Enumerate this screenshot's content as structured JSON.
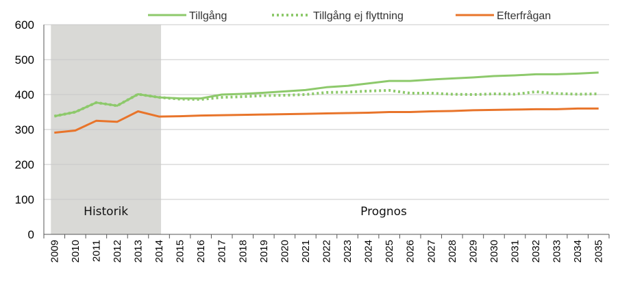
{
  "chart_data": {
    "type": "line",
    "title": "",
    "xlabel": "",
    "ylabel": "",
    "ylim": [
      0,
      600
    ],
    "yticks": [
      0,
      100,
      200,
      300,
      400,
      500,
      600
    ],
    "grid": "horizontal",
    "legend_position": "top",
    "x": [
      "2009",
      "2010",
      "2011",
      "2012",
      "2013",
      "2014",
      "2015",
      "2016",
      "2017",
      "2018",
      "2019",
      "2020",
      "2021",
      "2022",
      "2023",
      "2024",
      "2025",
      "2026",
      "2027",
      "2028",
      "2029",
      "2030",
      "2031",
      "2032",
      "2033",
      "2034",
      "2035"
    ],
    "series": [
      {
        "name": "Tillgång",
        "color": "#8dc96b",
        "style": "solid",
        "values": [
          338,
          350,
          377,
          368,
          401,
          392,
          389,
          389,
          400,
          402,
          405,
          409,
          413,
          421,
          425,
          432,
          439,
          439,
          443,
          446,
          449,
          453,
          455,
          458,
          458,
          460,
          463
        ]
      },
      {
        "name": "Tillgång ej flyttning",
        "color": "#8dc96b",
        "style": "dotted",
        "values": [
          338,
          350,
          377,
          368,
          401,
          392,
          387,
          386,
          392,
          394,
          397,
          398,
          400,
          406,
          407,
          410,
          412,
          404,
          404,
          401,
          400,
          402,
          401,
          408,
          403,
          401,
          402
        ]
      },
      {
        "name": "Efterfrågan",
        "color": "#e8742a",
        "style": "solid",
        "values": [
          291,
          297,
          325,
          322,
          352,
          337,
          338,
          340,
          341,
          342,
          343,
          344,
          345,
          346,
          347,
          348,
          350,
          350,
          352,
          353,
          355,
          356,
          357,
          358,
          358,
          360,
          360
        ]
      }
    ],
    "shaded_region": {
      "from": "2009",
      "to": "2014",
      "label": "Historik",
      "color": "#d9d9d6"
    },
    "annotations": [
      {
        "text": "Prognos"
      }
    ]
  }
}
